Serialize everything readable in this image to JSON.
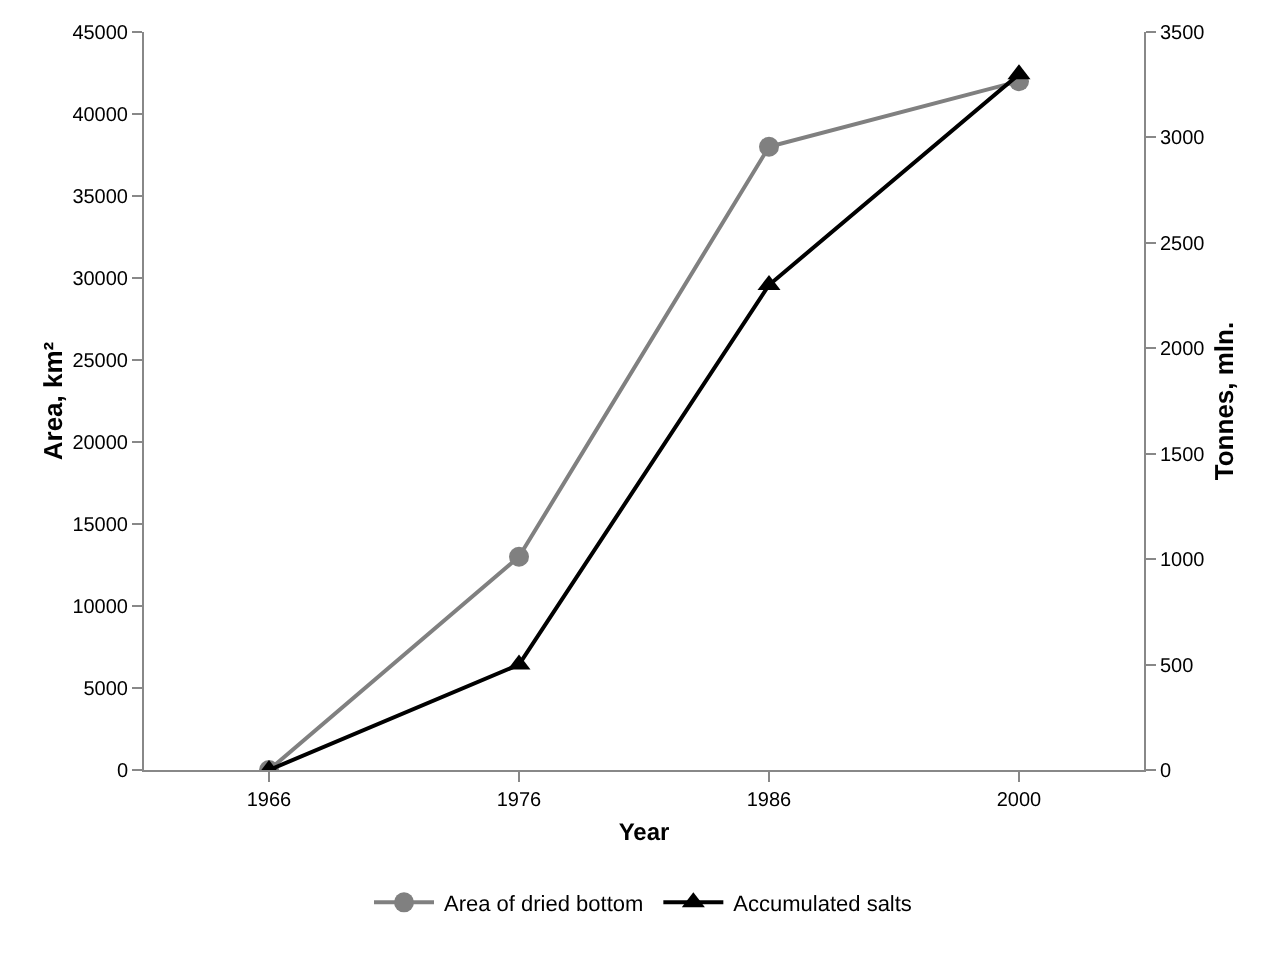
{
  "chart_data": {
    "type": "line",
    "xlabel": "Year",
    "ylabel": "Area, km²",
    "y2label": "Tonnes, mln.",
    "categories": [
      "1966",
      "1976",
      "1986",
      "2000"
    ],
    "series": [
      {
        "name": "Area of dried bottom",
        "color": "#808080",
        "marker": "circle",
        "values": [
          0,
          13000,
          38000,
          42000
        ]
      },
      {
        "name": "Accumulated salts",
        "color": "#000000",
        "marker": "triangle",
        "axis": "y2",
        "values": [
          0,
          500,
          2300,
          3300
        ]
      }
    ],
    "ylim": [
      0,
      45000
    ],
    "yticks": [
      0,
      5000,
      10000,
      15000,
      20000,
      25000,
      30000,
      35000,
      40000,
      45000
    ],
    "y2lim": [
      0,
      3500
    ],
    "y2ticks": [
      0,
      500,
      1000,
      1500,
      2000,
      2500,
      3000,
      3500
    ],
    "grid": false,
    "legend": "bottom",
    "line_style": "solid"
  }
}
